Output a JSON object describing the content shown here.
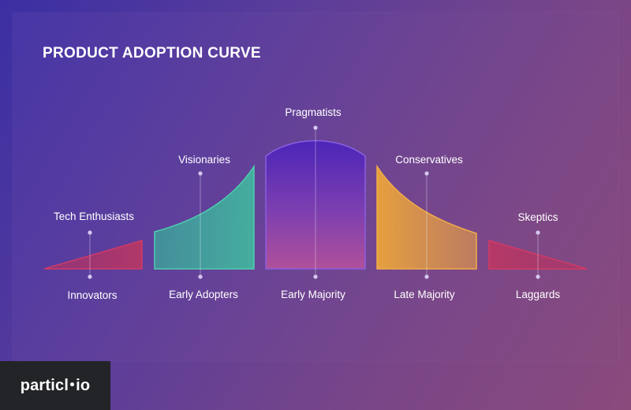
{
  "title": "PRODUCT ADOPTION CURVE",
  "segments": [
    {
      "name": "Innovators",
      "persona": "Tech Enthusiasts",
      "color": "#c2305c"
    },
    {
      "name": "Early Adopters",
      "persona": "Visionaries",
      "color": "#3fb89e"
    },
    {
      "name": "Early Majority",
      "persona": "Pragmatists",
      "color": "#7a3fd0"
    },
    {
      "name": "Late Majority",
      "persona": "Conservatives",
      "color": "#e39a3a"
    },
    {
      "name": "Laggards",
      "persona": "Skeptics",
      "color": "#c2305c"
    }
  ],
  "logo": {
    "part1": "particl",
    "part2": "io"
  }
}
